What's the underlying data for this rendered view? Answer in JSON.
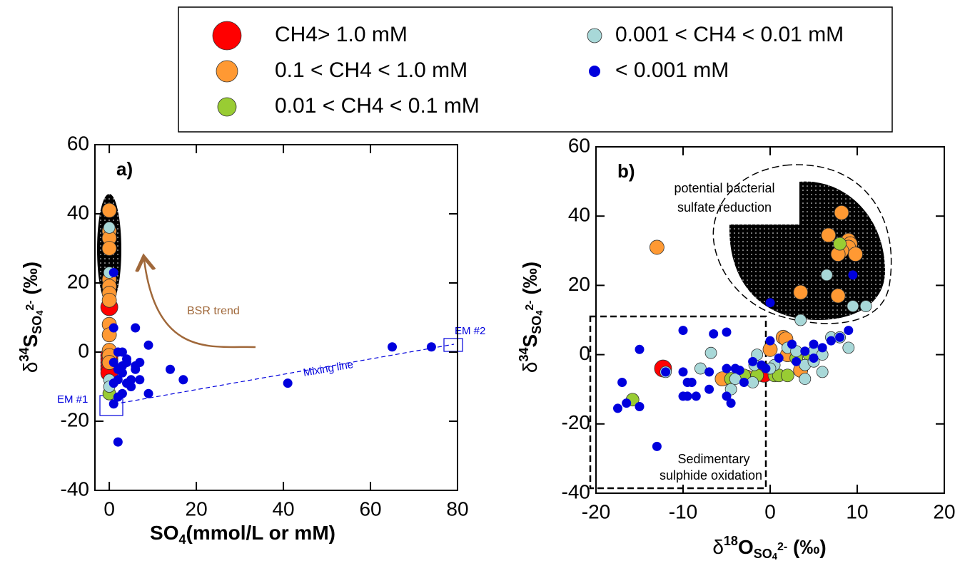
{
  "legend_title": null,
  "chart_data": [
    {
      "type": "scatter",
      "panel_label": "a)",
      "xlabel_parts": [
        "SO",
        "4",
        "(mmol/L or mM)"
      ],
      "ylabel_parts": [
        "δ",
        "34",
        "S",
        "SO",
        "4",
        "2-",
        " (‰)"
      ],
      "xlim": [
        -3.3,
        80
      ],
      "ylim": [
        -40,
        60
      ],
      "xticks": [
        0,
        20,
        40,
        60,
        80
      ],
      "yticks": [
        -40,
        -20,
        0,
        20,
        40,
        60
      ],
      "annotations": [
        "BSR trend",
        "Mixing line",
        "EM #1",
        "EM #2"
      ],
      "series": [
        {
          "name": "CH4> 1.0 mM",
          "color": "#ff0000",
          "x": [
            0,
            0,
            0,
            0,
            0,
            0,
            0
          ],
          "values": [
            13,
            -1,
            -2,
            -3,
            -4,
            -5,
            -6
          ]
        },
        {
          "name": "0.1 < CH4 < 1.0 mM",
          "color": "#ff9933",
          "x": [
            0,
            0,
            0,
            0,
            0,
            0,
            0,
            0,
            0,
            0,
            0,
            0,
            0
          ],
          "values": [
            41,
            35,
            33,
            30,
            21,
            19,
            17,
            15,
            8,
            5,
            0.5,
            -1,
            -3
          ]
        },
        {
          "name": "0.01 < CH4 < 0.1 mM",
          "color": "#99cc33",
          "x": [
            0
          ],
          "values": [
            -12
          ]
        },
        {
          "name": "0.001 < CH4 < 0.01 mM",
          "color": "#a8d8d8",
          "x": [
            0,
            0,
            0,
            0
          ],
          "values": [
            36,
            23,
            -8,
            -10
          ]
        },
        {
          "name": "< 0.001 mM",
          "color": "#0000dd",
          "x": [
            1,
            2,
            3,
            1,
            2,
            3,
            4,
            5,
            5,
            6,
            4,
            6,
            9,
            9,
            14,
            17,
            41,
            65,
            74,
            2,
            1,
            2,
            3,
            1,
            6,
            7,
            4,
            2,
            7,
            3,
            1
          ],
          "values": [
            7,
            0,
            0,
            -3,
            -5,
            -6,
            -3,
            -8,
            -10,
            -5,
            -2,
            -4,
            -12,
            2,
            -5,
            -8,
            -9,
            1.5,
            1.5,
            -26,
            -15,
            -13,
            -12,
            -9,
            7,
            -3,
            -9,
            -8,
            -8,
            -4,
            23
          ]
        }
      ]
    },
    {
      "type": "scatter",
      "panel_label": "b)",
      "xlabel_parts": [
        "δ",
        "18",
        "O",
        "SO",
        "4",
        "2-",
        " (‰)"
      ],
      "ylabel_parts": [
        "δ",
        "34",
        "S",
        "SO",
        "4",
        "2-",
        " (‰)"
      ],
      "xlim": [
        -20,
        20
      ],
      "ylim": [
        -40,
        60
      ],
      "xticks": [
        -20,
        -10,
        0,
        10,
        20
      ],
      "yticks": [
        -40,
        -20,
        0,
        20,
        40,
        60
      ],
      "annotations": [
        "potential bacterial",
        "sulfate reduction",
        "Sedimentary",
        "sulphide oxidation"
      ],
      "series": [
        {
          "name": "CH4> 1.0 mM",
          "color": "#ff0000",
          "x": [
            -12.3,
            -0.7
          ],
          "values": [
            -4,
            -5.5
          ]
        },
        {
          "name": "0.1 < CH4 < 1.0 mM",
          "color": "#ff9933",
          "x": [
            -13,
            -5.5,
            -2.7,
            1.5,
            1.8,
            0,
            2,
            3.5,
            6.7,
            9,
            9.2,
            9,
            8.2,
            7.8,
            9.8,
            8.2,
            3.5,
            7.8
          ],
          "values": [
            31,
            -7,
            -6.5,
            5,
            4.5,
            1.5,
            0,
            -4.5,
            34.5,
            33,
            32,
            31,
            30,
            29,
            29,
            41,
            18,
            17
          ]
        },
        {
          "name": "0.01 < CH4 < 0.1 mM",
          "color": "#99cc33",
          "x": [
            -15.8,
            -4.5,
            -3,
            -1.5,
            0.5,
            1,
            2,
            3,
            4.5,
            8
          ],
          "values": [
            -13,
            -7,
            -6,
            -6,
            -6,
            -6,
            -6,
            -1,
            0,
            32
          ]
        },
        {
          "name": "0.001 < CH4 < 0.01 mM",
          "color": "#a8d8d8",
          "x": [
            -12,
            -8,
            -6.8,
            -4.5,
            -1.8,
            -1.5,
            0.5,
            2,
            3,
            4,
            5,
            6,
            5,
            6,
            3.5,
            7,
            8,
            9,
            9.5,
            11,
            6.5,
            -2,
            -4,
            4,
            0
          ],
          "values": [
            -5,
            -4,
            0.5,
            -10,
            -3,
            0,
            -3,
            2,
            1,
            -3,
            1,
            0,
            -2,
            -5,
            10,
            5,
            5,
            2,
            14,
            14,
            23,
            -8,
            -7,
            -7,
            -4
          ]
        },
        {
          "name": "< 0.001 mM",
          "color": "#0000dd",
          "x": [
            -17.5,
            -16.5,
            -17,
            -15,
            -15,
            -13,
            -12,
            -10,
            -9.5,
            -9,
            -9.5,
            -8.5,
            -10,
            -10,
            -7,
            -6.5,
            -5,
            -4.5,
            -5,
            -4,
            -3,
            -2,
            -1,
            0,
            0,
            1,
            3,
            4,
            5,
            6,
            7,
            9,
            9.5,
            8,
            -5,
            -7,
            -3.5,
            -0.5,
            2.5,
            5
          ],
          "values": [
            -15.5,
            -14,
            -8,
            -15,
            1.5,
            -26.5,
            -5,
            -5,
            -8,
            -8,
            -12,
            -12,
            -12,
            7,
            -10,
            6,
            6.5,
            -14,
            -12,
            -4,
            -8,
            -2,
            -3,
            4,
            15,
            -1,
            -2,
            1,
            -1,
            2,
            4,
            7,
            23,
            5,
            -4,
            -5,
            -4.5,
            -4,
            3,
            3
          ]
        }
      ]
    }
  ]
}
